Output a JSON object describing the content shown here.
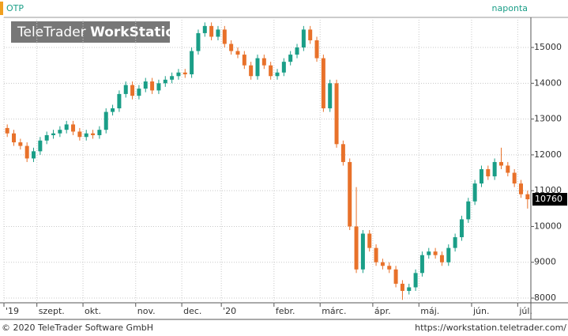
{
  "chart_data": {
    "type": "candlestick",
    "title": "OTP",
    "subtitle": "naponta",
    "watermark": [
      "TeleTrader ",
      "WorkStation"
    ],
    "footer_left": "© 2020 TeleTrader Software GmbH",
    "footer_right": "https://workstation.teletrader.com/",
    "up_color": "#1a9e87",
    "down_color": "#e8712a",
    "grid": true,
    "categories": [
      "'19",
      null,
      null,
      null,
      null,
      "szept.",
      null,
      null,
      null,
      null,
      null,
      null,
      "okt.",
      null,
      null,
      null,
      null,
      null,
      null,
      null,
      "nov.",
      null,
      null,
      null,
      null,
      null,
      null,
      "dec.",
      null,
      null,
      null,
      null,
      null,
      "'20",
      null,
      null,
      null,
      null,
      null,
      null,
      null,
      "febr.",
      null,
      null,
      null,
      null,
      null,
      null,
      "márc.",
      null,
      null,
      null,
      null,
      null,
      null,
      null,
      "ápr.",
      null,
      null,
      null,
      null,
      null,
      null,
      "máj.",
      null,
      null,
      null,
      null,
      null,
      null,
      null,
      "jún.",
      null,
      null,
      null,
      null,
      null,
      null,
      "júl.",
      null
    ],
    "open": [
      12750,
      12600,
      12350,
      12250,
      11900,
      12100,
      12400,
      12550,
      12600,
      12700,
      12850,
      12650,
      12500,
      12600,
      12550,
      12700,
      13200,
      13300,
      13700,
      13950,
      13650,
      13850,
      14050,
      13800,
      14000,
      14100,
      14200,
      14300,
      14250,
      14900,
      15400,
      15600,
      15300,
      15500,
      15100,
      14900,
      14800,
      14500,
      14200,
      14700,
      14500,
      14200,
      14300,
      14600,
      14800,
      15000,
      15500,
      15200,
      14700,
      13300,
      14000,
      12300,
      11800,
      10000,
      8800,
      9800,
      9400,
      9000,
      8900,
      8800,
      8400,
      8200,
      8300,
      8700,
      9200,
      9300,
      9200,
      9000,
      9400,
      9700,
      10200,
      10700,
      11200,
      11600,
      11400,
      11800,
      11700,
      11500,
      11200,
      10900
    ],
    "high": [
      12850,
      12700,
      12450,
      12350,
      12200,
      12500,
      12650,
      12700,
      12800,
      12950,
      12950,
      12750,
      12700,
      12700,
      12800,
      13300,
      13400,
      13800,
      14050,
      14050,
      13950,
      14150,
      14150,
      14100,
      14200,
      14300,
      14400,
      14400,
      15000,
      15500,
      15700,
      15700,
      15600,
      15600,
      15200,
      15000,
      14900,
      14600,
      14800,
      14800,
      14600,
      14400,
      14700,
      14900,
      15100,
      15600,
      15600,
      15300,
      14800,
      14100,
      14100,
      12400,
      11900,
      11100,
      9900,
      9900,
      9500,
      9100,
      9000,
      8900,
      8500,
      8400,
      8800,
      9300,
      9400,
      9400,
      9300,
      9500,
      9800,
      10300,
      10800,
      11300,
      11700,
      11700,
      11900,
      12200,
      11800,
      11600,
      11300,
      11000
    ],
    "low": [
      12500,
      12250,
      12150,
      11800,
      11800,
      12000,
      12300,
      12450,
      12500,
      12600,
      12550,
      12400,
      12400,
      12450,
      12450,
      12600,
      13100,
      13200,
      13600,
      13550,
      13550,
      13750,
      13700,
      13700,
      13900,
      14000,
      14100,
      14150,
      14150,
      14800,
      15300,
      15200,
      15200,
      15000,
      14800,
      14700,
      14400,
      14100,
      14100,
      14400,
      14100,
      14100,
      14200,
      14500,
      14700,
      14900,
      15100,
      14600,
      13200,
      13200,
      12200,
      11700,
      9900,
      8700,
      8700,
      9300,
      8900,
      8800,
      8700,
      8300,
      7950,
      8100,
      8200,
      8600,
      9100,
      9100,
      8900,
      8900,
      9300,
      9600,
      10100,
      10600,
      11100,
      11300,
      11300,
      11600,
      11400,
      11100,
      10800,
      10500
    ],
    "close": [
      12600,
      12350,
      12250,
      11900,
      12100,
      12400,
      12550,
      12600,
      12700,
      12850,
      12650,
      12500,
      12600,
      12550,
      12700,
      13200,
      13300,
      13700,
      13950,
      13650,
      13850,
      14050,
      13800,
      14000,
      14100,
      14200,
      14300,
      14250,
      14900,
      15400,
      15600,
      15300,
      15500,
      15100,
      14900,
      14800,
      14500,
      14200,
      14700,
      14500,
      14200,
      14300,
      14600,
      14800,
      15000,
      15500,
      15200,
      14700,
      13300,
      14000,
      12300,
      11800,
      10000,
      8800,
      9800,
      9400,
      9000,
      8900,
      8800,
      8400,
      8200,
      8300,
      8700,
      9200,
      9300,
      9200,
      9000,
      9400,
      9700,
      10200,
      10700,
      11200,
      11600,
      11400,
      11800,
      11700,
      11500,
      11200,
      10900,
      10760
    ],
    "ylim": [
      7868,
      15840
    ],
    "yticks": [
      8000,
      9000,
      10000,
      11000,
      12000,
      13000,
      14000,
      15000
    ]
  }
}
